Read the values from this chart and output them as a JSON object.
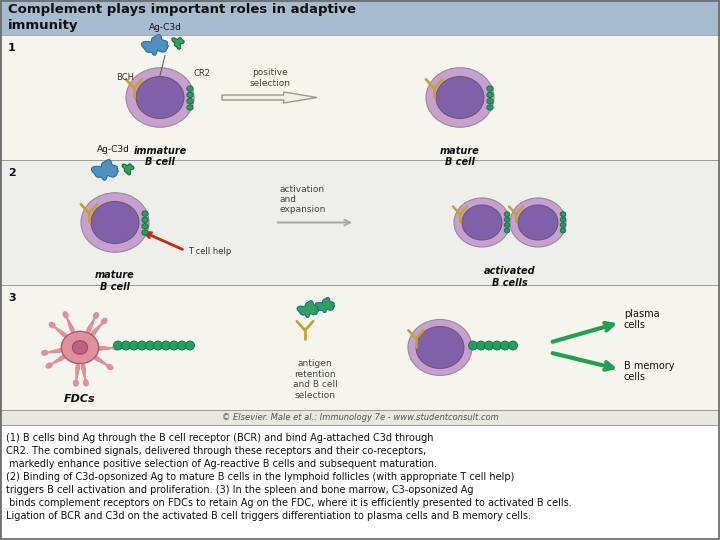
{
  "title": "Complement plays important roles in adaptive\nimmunity",
  "title_bg": "#c8d4e0",
  "fig_bg": "#ffffff",
  "caption_lines": [
    "(1) B cells bind Ag through the B cell receptor (BCR) and bind Ag-attached C3d through",
    "CR2. The combined signals, delivered through these receptors and their co-receptors,",
    " markedly enhance positive selection of Ag-reactive B cells and subsequent maturation.",
    "(2) Binding of C3d-opsonized Ag to mature B cells in the lymphoid follicles (with appropriate T cell help)",
    "triggers B cell activation and proliferation. (3) In the spleen and bone marrow, C3-opsonized Ag",
    " binds complement receptors on FDCs to retain Ag on the FDC, where it is efficiently presented to activated B cells.",
    "Ligation of BCR and C3d on the activated B cell triggers differentiation to plasma cells and B memory cells."
  ],
  "watermark": "© Elsevier. Male et al.: Immunology 7e - www.studentconsult.com",
  "colors": {
    "cell_purple": "#8060a8",
    "cell_membrane": "#c8a0d0",
    "ag_blue": "#5090c0",
    "ag_green": "#30a060",
    "cr2_green": "#20a060",
    "bcr_yellow": "#c8a030",
    "arrow_green": "#20a050",
    "arrow_red": "#cc2810",
    "fdc_pink": "#e0909a",
    "fdc_nucleus": "#c06080",
    "row_bg_odd": "#f5f5ee",
    "row_bg_even": "#eeeeea",
    "title_bg": "#a8bcd0",
    "border": "#888888"
  }
}
